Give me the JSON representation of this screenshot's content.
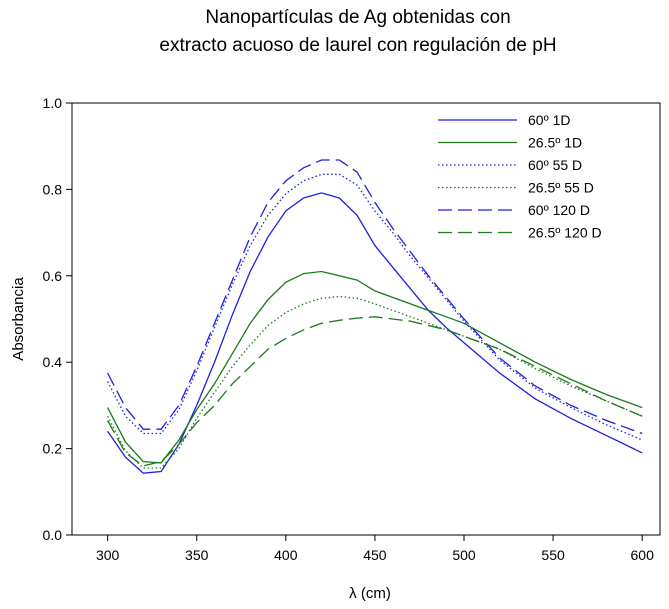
{
  "chart_data": {
    "type": "line",
    "title_lines": [
      "Nanopartículas de Ag obtenidas con",
      "extracto acuoso de laurel con regulación de pH"
    ],
    "xlabel": "λ (cm)",
    "ylabel": "Absorbancia",
    "xlim": [
      280,
      610
    ],
    "ylim": [
      0.0,
      1.0
    ],
    "xticks": [
      300,
      350,
      400,
      450,
      500,
      550,
      600
    ],
    "yticks": [
      0.0,
      0.2,
      0.4,
      0.6,
      0.8,
      1.0
    ],
    "xtick_labels": [
      "300",
      "350",
      "400",
      "450",
      "500",
      "550",
      "600"
    ],
    "ytick_labels": [
      "0.0",
      "0.2",
      "0.4",
      "0.6",
      "0.8",
      "1.0"
    ],
    "legend_position": "top-right",
    "grid": false,
    "series": [
      {
        "name": "60º 1D",
        "color": "#1f1fe0",
        "dash": "solid",
        "x": [
          300,
          310,
          320,
          330,
          340,
          350,
          360,
          370,
          380,
          390,
          400,
          410,
          420,
          430,
          440,
          450,
          460,
          470,
          480,
          490,
          500,
          520,
          540,
          560,
          580,
          600
        ],
        "y": [
          0.24,
          0.18,
          0.143,
          0.147,
          0.21,
          0.3,
          0.4,
          0.51,
          0.61,
          0.69,
          0.75,
          0.78,
          0.792,
          0.78,
          0.74,
          0.67,
          0.62,
          0.57,
          0.52,
          0.48,
          0.445,
          0.375,
          0.315,
          0.27,
          0.23,
          0.19
        ]
      },
      {
        "name": "26.5º 1D",
        "color": "#1a7a1a",
        "dash": "solid",
        "x": [
          300,
          310,
          320,
          330,
          340,
          350,
          360,
          370,
          380,
          390,
          400,
          410,
          420,
          430,
          440,
          450,
          460,
          470,
          480,
          490,
          500,
          520,
          540,
          560,
          580,
          600
        ],
        "y": [
          0.295,
          0.215,
          0.17,
          0.167,
          0.22,
          0.29,
          0.35,
          0.42,
          0.49,
          0.545,
          0.585,
          0.605,
          0.61,
          0.6,
          0.59,
          0.565,
          0.55,
          0.535,
          0.52,
          0.505,
          0.49,
          0.445,
          0.4,
          0.36,
          0.325,
          0.295
        ]
      },
      {
        "name": "60º 55 D",
        "color": "#1f1fe0",
        "dash": "dotted",
        "x": [
          300,
          310,
          320,
          330,
          340,
          350,
          360,
          370,
          380,
          390,
          400,
          410,
          420,
          430,
          440,
          450,
          460,
          470,
          480,
          490,
          500,
          520,
          540,
          560,
          580,
          600
        ],
        "y": [
          0.355,
          0.275,
          0.235,
          0.235,
          0.29,
          0.38,
          0.48,
          0.58,
          0.67,
          0.74,
          0.79,
          0.82,
          0.835,
          0.835,
          0.81,
          0.75,
          0.7,
          0.645,
          0.595,
          0.545,
          0.495,
          0.405,
          0.34,
          0.295,
          0.255,
          0.22
        ]
      },
      {
        "name": "26.5º 55 D",
        "color": "#1a7a1a",
        "dash": "dotted",
        "x": [
          300,
          310,
          320,
          330,
          340,
          350,
          360,
          370,
          380,
          390,
          400,
          410,
          420,
          430,
          440,
          450,
          460,
          470,
          480,
          490,
          500,
          520,
          540,
          560,
          580,
          600
        ],
        "y": [
          0.275,
          0.195,
          0.155,
          0.155,
          0.2,
          0.27,
          0.33,
          0.39,
          0.44,
          0.485,
          0.515,
          0.535,
          0.548,
          0.552,
          0.548,
          0.535,
          0.52,
          0.505,
          0.49,
          0.475,
          0.46,
          0.43,
          0.385,
          0.345,
          0.31,
          0.275
        ]
      },
      {
        "name": "60º 120 D",
        "color": "#1f1fe0",
        "dash": "longdash",
        "x": [
          300,
          310,
          320,
          330,
          340,
          350,
          360,
          370,
          380,
          390,
          400,
          410,
          420,
          430,
          440,
          450,
          460,
          470,
          480,
          490,
          500,
          520,
          540,
          560,
          580,
          600
        ],
        "y": [
          0.375,
          0.295,
          0.245,
          0.245,
          0.3,
          0.39,
          0.49,
          0.59,
          0.69,
          0.77,
          0.82,
          0.85,
          0.868,
          0.868,
          0.84,
          0.77,
          0.71,
          0.655,
          0.6,
          0.55,
          0.5,
          0.41,
          0.345,
          0.3,
          0.265,
          0.235
        ]
      },
      {
        "name": "26.5º 120 D",
        "color": "#1a7a1a",
        "dash": "longdash",
        "x": [
          300,
          310,
          320,
          330,
          340,
          350,
          360,
          370,
          380,
          390,
          400,
          410,
          420,
          430,
          440,
          450,
          460,
          470,
          480,
          490,
          500,
          520,
          540,
          560,
          580,
          600
        ],
        "y": [
          0.265,
          0.19,
          0.16,
          0.17,
          0.21,
          0.26,
          0.3,
          0.35,
          0.39,
          0.43,
          0.455,
          0.475,
          0.49,
          0.497,
          0.502,
          0.505,
          0.5,
          0.495,
          0.485,
          0.475,
          0.46,
          0.43,
          0.39,
          0.35,
          0.31,
          0.275
        ]
      }
    ]
  }
}
